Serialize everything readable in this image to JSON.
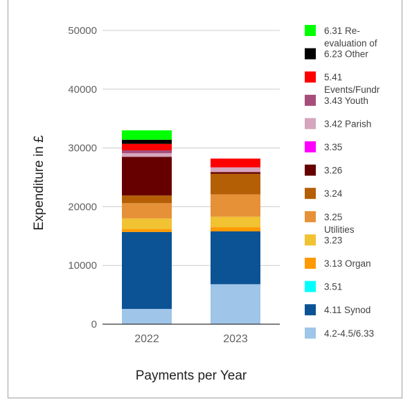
{
  "chart_data": {
    "type": "bar",
    "stacked": true,
    "title": "",
    "xlabel": "Payments per Year",
    "ylabel": "Expenditure in £",
    "ylim": [
      0,
      50000
    ],
    "yticks": [
      0,
      10000,
      20000,
      30000,
      40000,
      50000
    ],
    "categories": [
      "2022",
      "2023"
    ],
    "grid": true,
    "legend_position": "right",
    "series": [
      {
        "name": "4.2-4.5/6.33",
        "color": "#9fc5e8",
        "values": [
          2600,
          6800
        ]
      },
      {
        "name": "4.11 Synod",
        "color": "#0b5394",
        "values": [
          13100,
          9000
        ]
      },
      {
        "name": "3.51",
        "color": "#00ffff",
        "values": [
          0,
          0
        ]
      },
      {
        "name": "3.13 Organ",
        "color": "#ff9900",
        "values": [
          500,
          700
        ]
      },
      {
        "name": "3.23",
        "color": "#f1c232",
        "values": [
          1800,
          1800
        ]
      },
      {
        "name": "3.25 Utilities",
        "color": "#e69138",
        "values": [
          2600,
          3800
        ]
      },
      {
        "name": "3.24",
        "color": "#b45f06",
        "values": [
          1300,
          3500
        ]
      },
      {
        "name": "3.26",
        "color": "#660000",
        "values": [
          6600,
          300
        ]
      },
      {
        "name": "3.35",
        "color": "#ff00ff",
        "values": [
          0,
          0
        ]
      },
      {
        "name": "3.42 Parish",
        "color": "#d5a6bd",
        "values": [
          600,
          800
        ]
      },
      {
        "name": "3.43 Youth",
        "color": "#a64d79",
        "values": [
          500,
          0
        ]
      },
      {
        "name": "5.41 Events/Fundr",
        "color": "#ff0000",
        "values": [
          1100,
          1500
        ]
      },
      {
        "name": "6.23 Other",
        "color": "#000000",
        "values": [
          700,
          0
        ]
      },
      {
        "name": "6.31 Re-evaluation of",
        "color": "#00ff00",
        "values": [
          1600,
          0
        ]
      }
    ]
  }
}
